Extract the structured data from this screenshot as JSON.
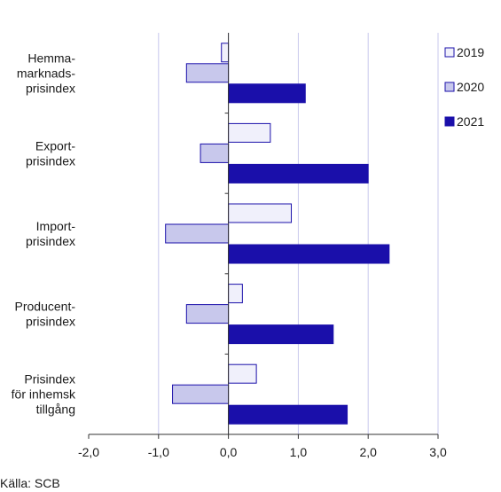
{
  "chart_data": {
    "type": "bar",
    "orientation": "horizontal",
    "categories": [
      [
        "Hemma-",
        "marknads-",
        "prisindex"
      ],
      [
        "Export-",
        "prisindex"
      ],
      [
        "Import-",
        "prisindex"
      ],
      [
        "Producent-",
        "prisindex"
      ],
      [
        "Prisindex",
        "för inhemsk",
        "tillgång"
      ]
    ],
    "series": [
      {
        "name": "2019",
        "color": "#f0f0fb",
        "values": [
          -0.1,
          0.6,
          0.9,
          0.2,
          0.4
        ]
      },
      {
        "name": "2020",
        "color": "#c8c8ec",
        "values": [
          -0.6,
          -0.4,
          -0.9,
          -0.6,
          -0.8
        ]
      },
      {
        "name": "2021",
        "color": "#1a0faa",
        "values": [
          1.1,
          2.0,
          2.3,
          1.5,
          1.7
        ]
      }
    ],
    "xlim": [
      -2,
      3
    ],
    "ticks": [
      -2,
      -1,
      0,
      1,
      2,
      3
    ],
    "tick_labels": [
      "-2,0",
      "-1,0",
      "0,0",
      "1,0",
      "2,0",
      "3,0"
    ],
    "grid": true,
    "legend_position": "top-right",
    "bar_stroke": "#1a0faa",
    "grid_color": "#c8c8ec"
  },
  "source": "Källa: SCB"
}
